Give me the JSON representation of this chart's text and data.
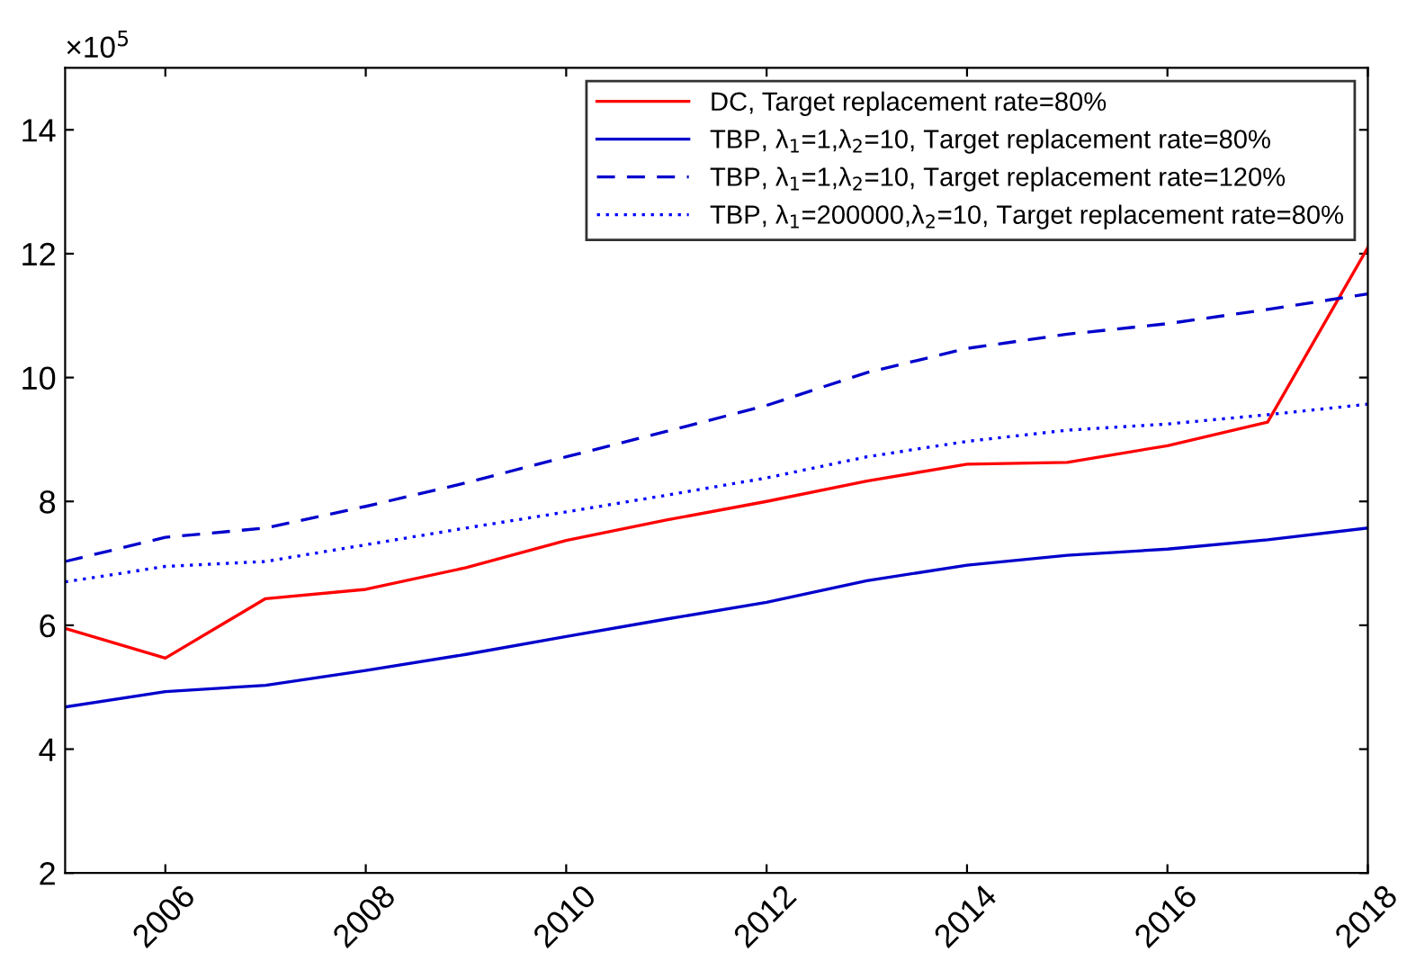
{
  "chart_data": {
    "type": "line",
    "x": [
      2005,
      2006,
      2007,
      2008,
      2009,
      2010,
      2011,
      2012,
      2013,
      2014,
      2015,
      2016,
      2017,
      2018
    ],
    "series": [
      {
        "name": "DC, Target replacement rate=80%",
        "color": "#ff0000",
        "line_style": "solid",
        "values": [
          5.95,
          5.47,
          6.43,
          6.58,
          6.93,
          7.37,
          7.7,
          8.0,
          8.33,
          8.6,
          8.63,
          8.9,
          9.28,
          12.1
        ]
      },
      {
        "name": "TBP, λ$_{1}$=1,λ$_{2}$=10, Target replacement rate=80%",
        "color": "#0000cc",
        "line_style": "solid",
        "values": [
          4.68,
          4.93,
          5.03,
          5.27,
          5.53,
          5.82,
          6.1,
          6.37,
          6.72,
          6.97,
          7.13,
          7.23,
          7.38,
          7.57
        ]
      },
      {
        "name": "TBP, λ$_{1}$=1,λ$_{2}$=10, Target replacement rate=120%",
        "color": "#0000cc",
        "line_style": "dashed",
        "values": [
          7.03,
          7.42,
          7.57,
          7.92,
          8.3,
          8.72,
          9.13,
          9.55,
          10.08,
          10.47,
          10.7,
          10.87,
          11.1,
          11.35
        ]
      },
      {
        "name": "TBP, λ$_{1}$=200000,λ$_{2}$=10, Target replacement rate=80%",
        "color": "#0000ff",
        "line_style": "dotted",
        "values": [
          6.7,
          6.95,
          7.03,
          7.3,
          7.57,
          7.83,
          8.1,
          8.38,
          8.72,
          8.97,
          9.15,
          9.25,
          9.4,
          9.57
        ]
      }
    ],
    "xlim": [
      2005,
      2018
    ],
    "xticks": [
      2006,
      2008,
      2010,
      2012,
      2014,
      2016,
      2018
    ],
    "ylim": [
      2,
      15
    ],
    "yticks": [
      2,
      4,
      6,
      8,
      10,
      12,
      14
    ],
    "annotations": [
      "×10$^{5}$"
    ],
    "legend": "top right",
    "grid": false,
    "marker": "none"
  }
}
